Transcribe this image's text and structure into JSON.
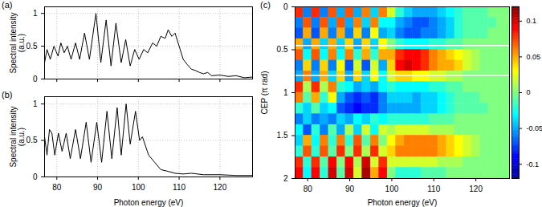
{
  "chart_data": [
    {
      "type": "line",
      "title": "(a)",
      "ylabel": "Spectral intensity (a.u.)",
      "color": "#000000",
      "x": [
        77,
        77.6,
        78.4,
        79.3,
        80.3,
        81,
        81.8,
        82.6,
        83.5,
        84.6,
        85.6,
        86.8,
        88,
        89.6,
        90.8,
        92.1,
        93.3,
        94.5,
        95.8,
        96.9,
        98,
        99.1,
        100.2,
        101.3,
        102.3,
        103.5,
        104.5,
        105.5,
        106.6,
        107.3,
        108.2,
        109,
        110,
        111,
        112,
        113,
        114,
        115,
        116,
        117,
        118,
        120,
        122,
        124,
        126,
        128
      ],
      "values": [
        0.25,
        0.45,
        0.3,
        0.5,
        0.35,
        0.55,
        0.4,
        0.5,
        0.3,
        0.55,
        0.3,
        0.7,
        0.3,
        1.0,
        0.25,
        0.9,
        0.2,
        0.85,
        0.25,
        0.6,
        0.2,
        0.45,
        0.3,
        0.45,
        0.4,
        0.55,
        0.5,
        0.65,
        0.62,
        0.75,
        0.65,
        0.7,
        0.5,
        0.3,
        0.22,
        0.15,
        0.13,
        0.1,
        0.08,
        0.1,
        0.05,
        0.06,
        0.04,
        0.05,
        0.02,
        0.03
      ],
      "xlim": [
        77,
        128
      ],
      "ylim": [
        0,
        1.1
      ],
      "xticks": [
        80,
        90,
        100,
        110,
        120
      ],
      "yticks": [
        0,
        0.5,
        1
      ],
      "grid": true,
      "tick_labels": "y"
    },
    {
      "type": "line",
      "title": "(b)",
      "xlabel": "Photon energy (eV)",
      "ylabel": "Spectral intensity (a.u.)",
      "color": "#000000",
      "x": [
        77,
        77.6,
        78.2,
        78.8,
        79.5,
        80.4,
        81.3,
        82.3,
        83.3,
        84.6,
        85.8,
        87.2,
        88.4,
        89.8,
        91,
        92.3,
        93.5,
        94.8,
        95.8,
        97,
        98,
        99.3,
        100.3,
        101,
        102.5,
        104,
        105.5,
        107,
        109,
        111,
        113,
        116,
        120,
        124,
        128
      ],
      "values": [
        0.55,
        0.3,
        0.65,
        0.6,
        0.3,
        0.6,
        0.35,
        0.6,
        0.25,
        0.65,
        0.25,
        0.75,
        0.2,
        0.75,
        0.2,
        0.9,
        0.25,
        0.95,
        0.3,
        1.0,
        0.45,
        0.9,
        0.5,
        0.55,
        0.3,
        0.2,
        0.1,
        0.08,
        0.05,
        0.04,
        0.05,
        0.03,
        0.03,
        0.02,
        0.02
      ],
      "xlim": [
        77,
        128
      ],
      "ylim": [
        0,
        1.1
      ],
      "xticks": [
        80,
        90,
        100,
        110,
        120
      ],
      "yticks": [
        0,
        0.5,
        1
      ],
      "grid": true
    },
    {
      "type": "heatmap",
      "title": "(c)",
      "xlabel": "Photon energy (eV)",
      "ylabel": "CEP (π rad)",
      "x_edges": [
        77,
        79,
        81,
        83,
        85,
        87,
        89,
        91,
        93,
        95,
        97,
        99,
        101,
        103,
        105,
        107,
        109,
        111,
        113,
        115,
        117,
        119,
        121,
        123,
        125,
        127,
        128
      ],
      "y_edges": [
        0,
        0.125,
        0.25,
        0.375,
        0.5,
        0.625,
        0.75,
        0.875,
        1,
        1.125,
        1.25,
        1.375,
        1.5,
        1.625,
        1.75,
        1.875,
        2
      ],
      "cells": [
        [
          0.08,
          -0.06,
          0.08,
          -0.06,
          0.07,
          -0.05,
          0.07,
          -0.05,
          0.06,
          -0.04,
          0.06,
          0.02,
          -0.02,
          -0.04,
          -0.05,
          -0.05,
          -0.05,
          -0.04,
          -0.03,
          -0.02,
          -0.01,
          -0.01,
          -0.01,
          0,
          0,
          0
        ],
        [
          -0.06,
          0.07,
          -0.06,
          0.07,
          -0.05,
          0.07,
          -0.05,
          0.06,
          -0.04,
          0.06,
          -0.03,
          -0.03,
          -0.05,
          -0.06,
          -0.07,
          -0.07,
          -0.06,
          -0.05,
          -0.04,
          -0.02,
          -0.01,
          -0.01,
          -0.01,
          -0.01,
          0,
          0
        ],
        [
          -0.07,
          0.05,
          -0.07,
          0.05,
          -0.06,
          0.05,
          -0.06,
          0.04,
          -0.06,
          0.03,
          -0.05,
          -0.04,
          -0.06,
          -0.07,
          -0.07,
          -0.06,
          -0.06,
          -0.05,
          -0.04,
          -0.02,
          -0.01,
          -0.01,
          -0.01,
          0,
          0,
          0
        ],
        [
          0.05,
          -0.05,
          0.05,
          -0.04,
          0.05,
          -0.04,
          0.04,
          -0.05,
          0.04,
          -0.04,
          0.03,
          0,
          -0.02,
          -0.03,
          -0.03,
          -0.03,
          -0.02,
          -0.02,
          -0.01,
          -0.01,
          0,
          0,
          0,
          0,
          0,
          0
        ],
        [
          0.07,
          -0.03,
          0.07,
          -0.03,
          0.06,
          -0.03,
          0.06,
          -0.02,
          0.05,
          -0.02,
          0.05,
          0.05,
          0.08,
          0.09,
          0.09,
          0.08,
          0.06,
          0.05,
          0.04,
          0.03,
          0.02,
          0.01,
          0,
          0,
          0,
          0
        ],
        [
          -0.06,
          0.04,
          -0.06,
          0.04,
          -0.06,
          0.03,
          -0.07,
          0.02,
          -0.07,
          0.02,
          -0.05,
          0.04,
          0.09,
          0.1,
          0.09,
          0.08,
          0.06,
          0.05,
          0.05,
          0.04,
          0.02,
          0.01,
          0,
          0,
          0,
          0
        ],
        [
          -0.05,
          0.06,
          -0.05,
          0.05,
          -0.04,
          0.04,
          -0.05,
          0.04,
          -0.04,
          0.03,
          -0.03,
          0.02,
          0.04,
          0.04,
          0.03,
          0.03,
          0.02,
          0.02,
          0.01,
          0.01,
          0,
          0,
          0,
          0,
          0,
          0
        ],
        [
          0.08,
          0.01,
          0.08,
          0.01,
          0.06,
          -0.02,
          -0.03,
          -0.05,
          -0.04,
          -0.05,
          -0.03,
          -0.02,
          -0.03,
          -0.03,
          -0.03,
          -0.03,
          -0.02,
          -0.02,
          -0.01,
          -0.01,
          0,
          0,
          0,
          0,
          0,
          0
        ],
        [
          0.06,
          -0.01,
          0.05,
          -0.02,
          0.03,
          -0.05,
          -0.07,
          -0.08,
          -0.07,
          -0.08,
          -0.06,
          -0.04,
          -0.04,
          -0.04,
          -0.05,
          -0.04,
          -0.04,
          -0.03,
          -0.02,
          -0.01,
          -0.01,
          -0.01,
          0,
          0,
          0,
          0
        ],
        [
          -0.02,
          -0.04,
          -0.01,
          -0.04,
          -0.03,
          -0.07,
          -0.08,
          -0.09,
          -0.08,
          -0.08,
          -0.06,
          -0.05,
          -0.05,
          -0.05,
          -0.05,
          -0.04,
          -0.04,
          -0.03,
          -0.02,
          -0.01,
          -0.01,
          -0.01,
          -0.01,
          0,
          0,
          0
        ],
        [
          -0.06,
          -0.04,
          -0.06,
          -0.05,
          -0.06,
          -0.04,
          -0.05,
          -0.03,
          -0.04,
          -0.02,
          -0.03,
          -0.02,
          -0.02,
          -0.02,
          -0.02,
          -0.02,
          -0.01,
          -0.01,
          -0.01,
          0,
          0,
          0,
          0,
          0,
          0,
          0
        ],
        [
          -0.03,
          -0.07,
          -0.02,
          -0.06,
          -0.01,
          -0.05,
          0.01,
          -0.04,
          0.02,
          -0.03,
          0.02,
          0.01,
          0.02,
          0.02,
          0.02,
          0.02,
          0.01,
          0.01,
          0.01,
          0,
          0,
          0,
          0,
          0,
          0,
          0
        ],
        [
          -0.04,
          0.05,
          -0.03,
          0.06,
          -0.02,
          0.06,
          -0.02,
          0.07,
          -0.01,
          0.06,
          0,
          0.03,
          0.05,
          0.06,
          0.06,
          0.06,
          0.06,
          0.05,
          0.04,
          0.03,
          0.02,
          0.01,
          0,
          0,
          0,
          0
        ],
        [
          -0.02,
          0.07,
          -0.02,
          0.07,
          -0.01,
          0.08,
          0,
          0.08,
          0.01,
          0.08,
          0.02,
          0.04,
          0.06,
          0.06,
          0.06,
          0.06,
          0.06,
          0.05,
          0.04,
          0.03,
          0.02,
          0.01,
          0,
          0,
          0,
          0
        ],
        [
          0.08,
          -0.02,
          0.08,
          -0.01,
          0.09,
          0,
          0.09,
          0.01,
          0.1,
          0.02,
          0.08,
          0.02,
          0.02,
          0.02,
          0.02,
          0.02,
          0.02,
          0.01,
          0.01,
          0.01,
          0,
          0,
          0,
          0,
          0,
          0
        ],
        [
          0.09,
          -0.03,
          0.09,
          -0.02,
          0.1,
          -0.01,
          0.1,
          0.02,
          0.11,
          0.05,
          0.09,
          0,
          -0.02,
          -0.02,
          -0.02,
          -0.01,
          -0.01,
          -0.01,
          0,
          0,
          0,
          0,
          0,
          0,
          0,
          0
        ]
      ],
      "xlim": [
        77,
        128
      ],
      "ylim": [
        0,
        2
      ],
      "xticks": [
        80,
        90,
        100,
        110,
        120
      ],
      "yticks": [
        0,
        0.5,
        1,
        1.5,
        2
      ],
      "color_range": [
        -0.12,
        0.12
      ],
      "color_ticks": [
        -0.1,
        -0.05,
        0,
        0.05,
        0.1
      ],
      "hlines": [
        0.45,
        0.8
      ]
    }
  ]
}
